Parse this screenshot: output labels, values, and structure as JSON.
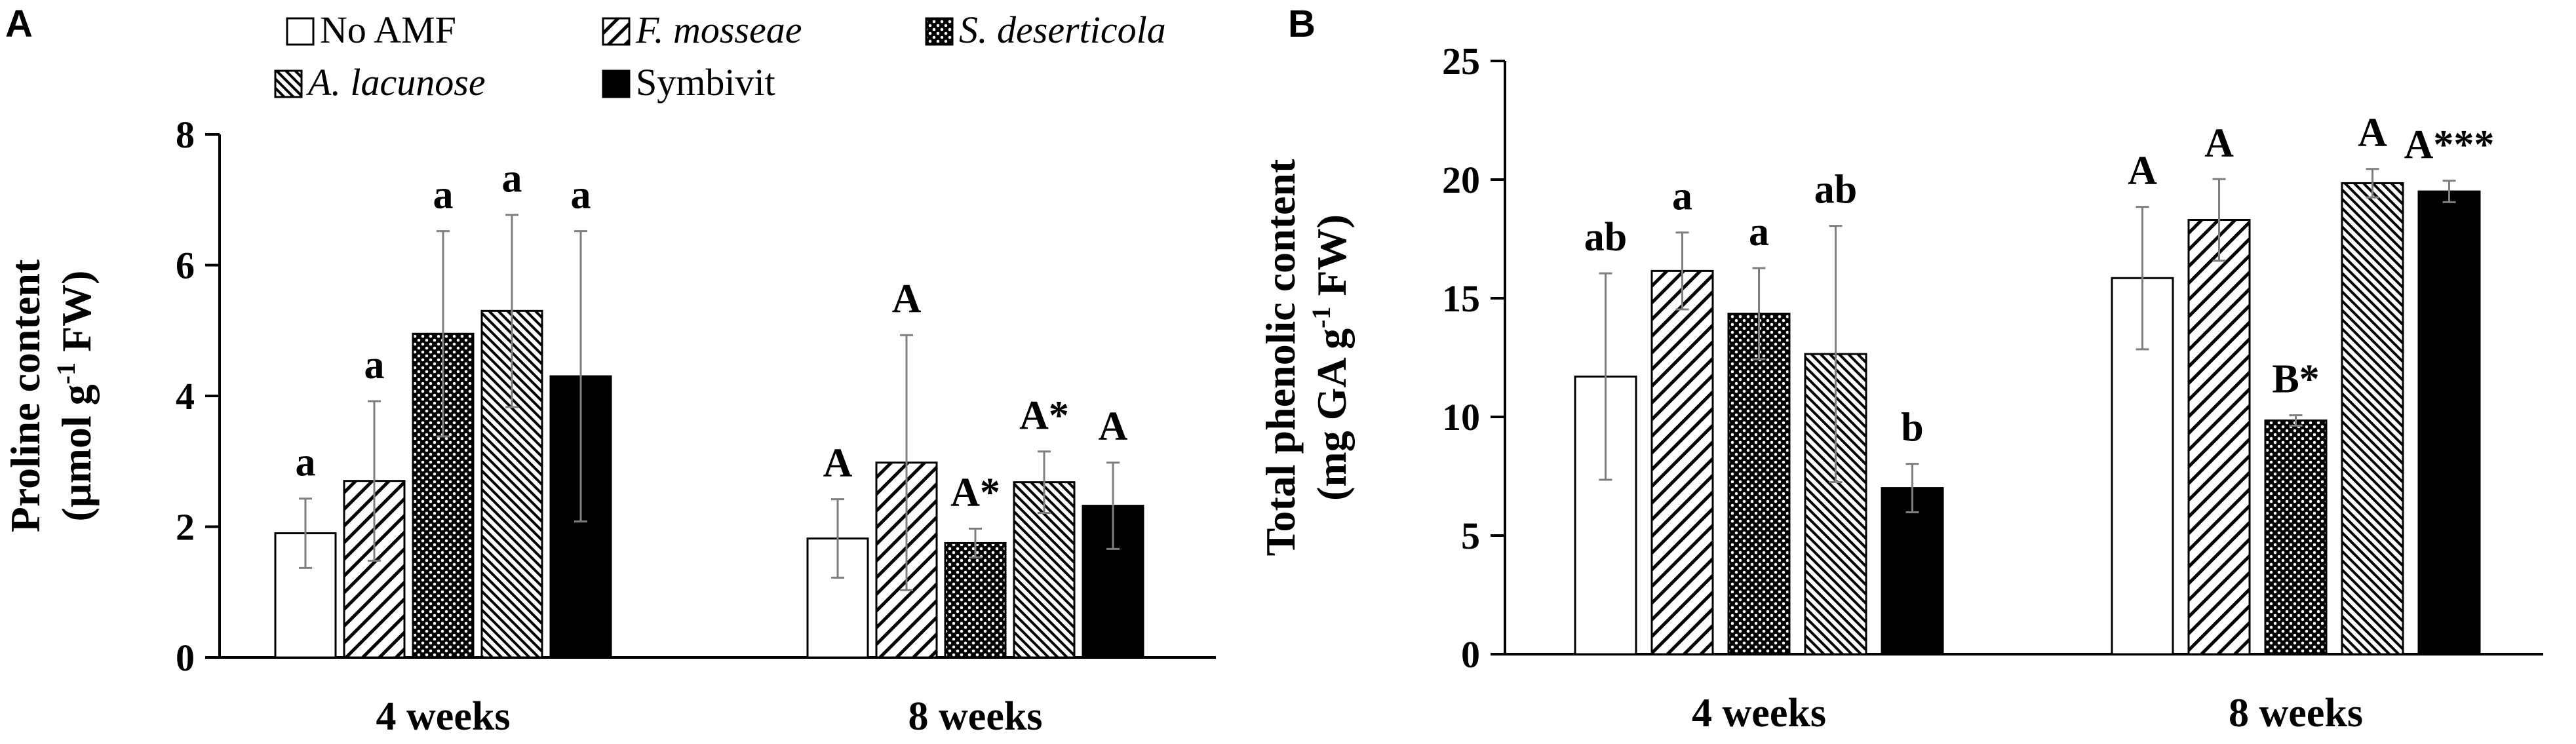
{
  "chart_data": [
    {
      "type": "bar",
      "panel": "A",
      "ylabel_line1": "Proline content",
      "ylabel_line2_pre": "(µmol g",
      "ylabel_line2_sup": "-1",
      "ylabel_line2_post": " FW)",
      "ylim": [
        0,
        8
      ],
      "yticks": [
        0,
        2,
        4,
        6,
        8
      ],
      "categories": [
        "4 weeks",
        "8 weeks"
      ],
      "series": [
        {
          "name": "No AMF",
          "pattern": "white",
          "values": [
            1.9,
            1.82
          ],
          "errors": [
            0.53,
            0.6
          ],
          "labels": [
            "a",
            "A"
          ]
        },
        {
          "name": "F. mosseae",
          "italic": true,
          "pattern": "hatch-wide",
          "values": [
            2.7,
            2.98
          ],
          "errors": [
            1.22,
            1.95
          ],
          "labels": [
            "a",
            "A"
          ]
        },
        {
          "name": "S. deserticola",
          "italic": true,
          "pattern": "crosshatch",
          "values": [
            4.95,
            1.75
          ],
          "errors": [
            1.57,
            0.22
          ],
          "labels": [
            "a",
            "A*"
          ]
        },
        {
          "name": "A. lacunose",
          "italic": true,
          "pattern": "hatch-fine",
          "values": [
            5.3,
            2.68
          ],
          "errors": [
            1.47,
            0.47
          ],
          "labels": [
            "a",
            "A*"
          ]
        },
        {
          "name": "Symbivit",
          "pattern": "black",
          "values": [
            4.3,
            2.32
          ],
          "errors": [
            2.22,
            0.66
          ],
          "labels": [
            "a",
            "A"
          ]
        }
      ]
    },
    {
      "type": "bar",
      "panel": "B",
      "ylabel_line1": "Total phenolic content",
      "ylabel_line2_pre": "(mg GA g",
      "ylabel_line2_sup": "-1",
      "ylabel_line2_post": " FW)",
      "ylim": [
        0,
        25
      ],
      "yticks": [
        0,
        5,
        10,
        15,
        20,
        25
      ],
      "categories": [
        "4 weeks",
        "8 weeks"
      ],
      "series": [
        {
          "name": "No AMF",
          "pattern": "white",
          "values": [
            11.7,
            15.85
          ],
          "errors": [
            4.35,
            3.0
          ],
          "labels": [
            "ab",
            "A"
          ]
        },
        {
          "name": "F. mosseae",
          "italic": true,
          "pattern": "hatch-wide",
          "values": [
            16.15,
            18.3
          ],
          "errors": [
            1.62,
            1.72
          ],
          "labels": [
            "a",
            "A"
          ]
        },
        {
          "name": "S. deserticola",
          "italic": true,
          "pattern": "crosshatch",
          "values": [
            14.35,
            9.85
          ],
          "errors": [
            1.92,
            0.22
          ],
          "labels": [
            "a",
            "B*"
          ]
        },
        {
          "name": "A. lacunose",
          "italic": true,
          "pattern": "hatch-fine",
          "values": [
            12.65,
            19.85
          ],
          "errors": [
            5.4,
            0.6
          ],
          "labels": [
            "ab",
            "A"
          ]
        },
        {
          "name": "Symbivit",
          "pattern": "black",
          "values": [
            7.0,
            19.5
          ],
          "errors": [
            1.02,
            0.45
          ],
          "labels": [
            "b",
            "A***"
          ]
        }
      ]
    }
  ],
  "legend": [
    {
      "name": "No AMF",
      "italic": false,
      "pattern": "white"
    },
    {
      "name": "F. mosseae",
      "italic": true,
      "pattern": "hatch-wide"
    },
    {
      "name": "S. deserticola",
      "italic": true,
      "pattern": "crosshatch"
    },
    {
      "name": "A. lacunose",
      "italic": true,
      "pattern": "hatch-fine"
    },
    {
      "name": "Symbivit",
      "italic": false,
      "pattern": "black"
    }
  ]
}
